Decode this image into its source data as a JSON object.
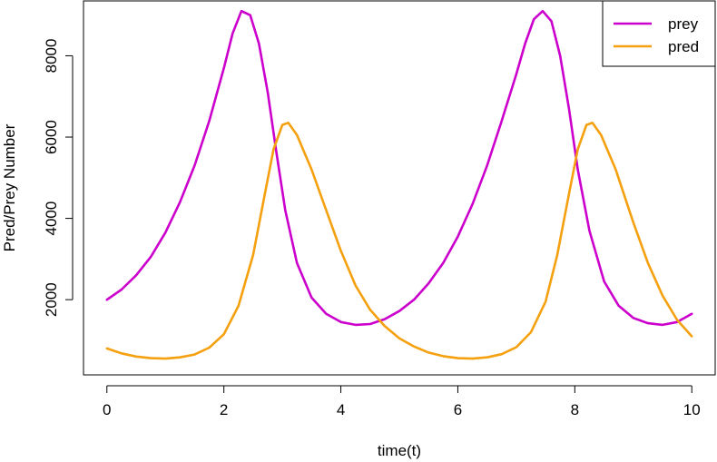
{
  "chart_data": {
    "type": "line",
    "title": "",
    "xlabel": "time(t)",
    "ylabel": "Pred/Prey Number",
    "xlim": [
      -0.4,
      10.4
    ],
    "ylim": [
      150,
      9350
    ],
    "x_ticks": [
      0,
      2,
      4,
      6,
      8,
      10
    ],
    "y_ticks": [
      2000,
      4000,
      6000,
      8000
    ],
    "x_tick_labels": [
      "0",
      "2",
      "4",
      "6",
      "8",
      "10"
    ],
    "y_tick_labels": [
      "2000",
      "4000",
      "6000",
      "8000"
    ],
    "grid": false,
    "legend_position": "top-right",
    "series": [
      {
        "name": "prey",
        "color": "#cc00cc",
        "points": [
          [
            0,
            2000
          ],
          [
            0.25,
            2250
          ],
          [
            0.5,
            2600
          ],
          [
            0.75,
            3050
          ],
          [
            1.0,
            3650
          ],
          [
            1.25,
            4400
          ],
          [
            1.5,
            5300
          ],
          [
            1.75,
            6400
          ],
          [
            2.0,
            7700
          ],
          [
            2.15,
            8550
          ],
          [
            2.3,
            9100
          ],
          [
            2.45,
            9000
          ],
          [
            2.6,
            8300
          ],
          [
            2.75,
            7100
          ],
          [
            2.9,
            5600
          ],
          [
            3.05,
            4200
          ],
          [
            3.25,
            2900
          ],
          [
            3.5,
            2050
          ],
          [
            3.75,
            1650
          ],
          [
            4.0,
            1450
          ],
          [
            4.25,
            1380
          ],
          [
            4.5,
            1400
          ],
          [
            4.75,
            1520
          ],
          [
            5.0,
            1720
          ],
          [
            5.25,
            2000
          ],
          [
            5.5,
            2400
          ],
          [
            5.75,
            2900
          ],
          [
            6.0,
            3550
          ],
          [
            6.25,
            4350
          ],
          [
            6.5,
            5300
          ],
          [
            6.75,
            6400
          ],
          [
            7.0,
            7550
          ],
          [
            7.15,
            8300
          ],
          [
            7.3,
            8900
          ],
          [
            7.45,
            9100
          ],
          [
            7.6,
            8850
          ],
          [
            7.75,
            8000
          ],
          [
            7.9,
            6700
          ],
          [
            8.05,
            5200
          ],
          [
            8.25,
            3700
          ],
          [
            8.5,
            2450
          ],
          [
            8.75,
            1850
          ],
          [
            9.0,
            1550
          ],
          [
            9.25,
            1420
          ],
          [
            9.5,
            1380
          ],
          [
            9.75,
            1450
          ],
          [
            10.0,
            1650
          ]
        ]
      },
      {
        "name": "pred",
        "color": "#f5a00f",
        "points": [
          [
            0,
            800
          ],
          [
            0.25,
            680
          ],
          [
            0.5,
            600
          ],
          [
            0.75,
            560
          ],
          [
            1.0,
            550
          ],
          [
            1.25,
            580
          ],
          [
            1.5,
            650
          ],
          [
            1.75,
            820
          ],
          [
            2.0,
            1150
          ],
          [
            2.25,
            1850
          ],
          [
            2.5,
            3100
          ],
          [
            2.7,
            4600
          ],
          [
            2.85,
            5700
          ],
          [
            3.0,
            6300
          ],
          [
            3.1,
            6350
          ],
          [
            3.25,
            6050
          ],
          [
            3.5,
            5200
          ],
          [
            3.75,
            4200
          ],
          [
            4.0,
            3200
          ],
          [
            4.25,
            2350
          ],
          [
            4.5,
            1750
          ],
          [
            4.75,
            1350
          ],
          [
            5.0,
            1050
          ],
          [
            5.25,
            850
          ],
          [
            5.5,
            700
          ],
          [
            5.75,
            610
          ],
          [
            6.0,
            560
          ],
          [
            6.25,
            550
          ],
          [
            6.5,
            580
          ],
          [
            6.75,
            660
          ],
          [
            7.0,
            830
          ],
          [
            7.25,
            1200
          ],
          [
            7.5,
            1950
          ],
          [
            7.7,
            3100
          ],
          [
            7.9,
            4600
          ],
          [
            8.05,
            5700
          ],
          [
            8.2,
            6300
          ],
          [
            8.3,
            6350
          ],
          [
            8.45,
            6050
          ],
          [
            8.7,
            5200
          ],
          [
            9.0,
            3900
          ],
          [
            9.25,
            2900
          ],
          [
            9.5,
            2100
          ],
          [
            9.75,
            1500
          ],
          [
            10.0,
            1100
          ]
        ]
      }
    ]
  }
}
